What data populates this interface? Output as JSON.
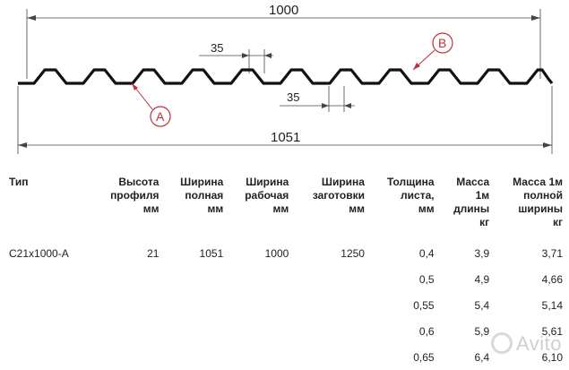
{
  "drawing": {
    "width_top": "1000",
    "pitch_top": "35",
    "pitch_bottom": "35",
    "width_bottom": "1051",
    "callout_a": "A",
    "callout_b": "B",
    "callout_color": "#c0303a"
  },
  "table": {
    "headers": [
      [
        "Тип"
      ],
      [
        "Высота",
        "профиля",
        "мм"
      ],
      [
        "Ширина",
        "полная",
        "мм"
      ],
      [
        "Ширина",
        "рабочая",
        "мм"
      ],
      [
        "Ширина",
        "заготовки",
        "мм"
      ],
      [
        "Толщина",
        "листа,",
        "мм"
      ],
      [
        "Масса",
        "1м",
        "длины",
        "кг"
      ],
      [
        "Масса 1м",
        "полной",
        "ширины",
        "кг"
      ]
    ],
    "rows": [
      [
        "С21х1000-А",
        "21",
        "1051",
        "1000",
        "1250",
        "0,4",
        "3,9",
        "3,71"
      ],
      [
        "",
        "",
        "",
        "",
        "",
        "0,5",
        "4,9",
        "4,66"
      ],
      [
        "",
        "",
        "",
        "",
        "",
        "0,55",
        "5,4",
        "5,14"
      ],
      [
        "",
        "",
        "",
        "",
        "",
        "0,6",
        "5,9",
        "5,61"
      ],
      [
        "",
        "",
        "",
        "",
        "",
        "0,65",
        "6,4",
        "6,10"
      ]
    ]
  },
  "watermark": "Avito"
}
